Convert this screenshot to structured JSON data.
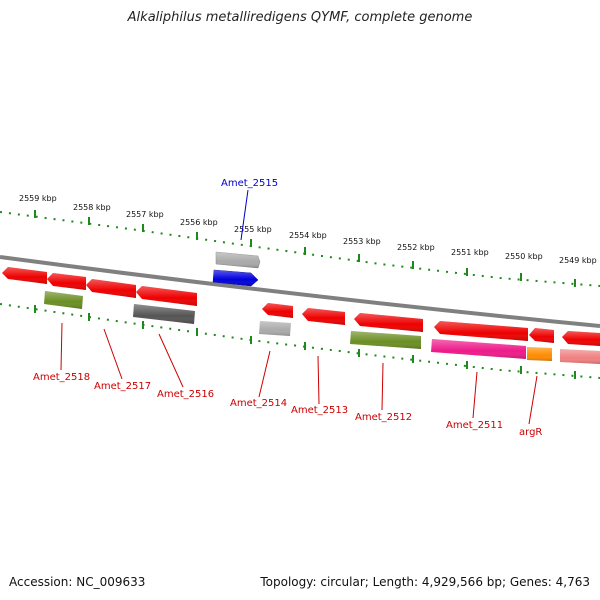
{
  "title": "Alkaliphilus metalliredigens QYMF, complete genome",
  "accession": "Accession: NC_009633",
  "topology": "Topology: circular; Length: 4,929,566 bp; Genes: 4,763",
  "colors": {
    "tick": "#1e8a1e",
    "backbone": "#808080",
    "gene_label": "#cc0000",
    "highlight_label": "#0000cc"
  },
  "kbp_labels": [
    "2559 kbp",
    "2558 kbp",
    "2557 kbp",
    "2556 kbp",
    "2555 kbp",
    "2554 kbp",
    "2553 kbp",
    "2552 kbp",
    "2551 kbp",
    "2550 kbp",
    "2549 kbp"
  ],
  "gene_labels": [
    "Amet_2515",
    "Amet_2518",
    "Amet_2517",
    "Amet_2516",
    "Amet_2514",
    "Amet_2513",
    "Amet_2512",
    "Amet_2511",
    "argR"
  ],
  "features": [
    {
      "name": "Amet_2515 gene",
      "color": "#aaaaaa",
      "strand": "+"
    },
    {
      "name": "Amet_2515 CDS",
      "color": "#0000dd",
      "strand": "+"
    },
    {
      "name": "Amet_2518 gene",
      "color": "#ee0000",
      "strand": "-"
    },
    {
      "name": "Amet_2518 CDS",
      "color": "#6b8e23",
      "strand": "-"
    },
    {
      "name": "Amet_2517 gene",
      "color": "#ee0000",
      "strand": "-"
    },
    {
      "name": "Amet_2516 gene",
      "color": "#ee0000",
      "strand": "-"
    },
    {
      "name": "Amet_2516 CDS",
      "color": "#555555",
      "strand": "-"
    },
    {
      "name": "Amet_2514 gene",
      "color": "#ee0000",
      "strand": "-"
    },
    {
      "name": "Amet_2514 CDS",
      "color": "#aaaaaa",
      "strand": "-"
    },
    {
      "name": "Amet_2513 gene",
      "color": "#ee0000",
      "strand": "-"
    },
    {
      "name": "Amet_2512 gene",
      "color": "#ee0000",
      "strand": "-"
    },
    {
      "name": "Amet_2512 CDS",
      "color": "#6b8e23",
      "strand": "-"
    },
    {
      "name": "Amet_2511 gene",
      "color": "#ee0000",
      "strand": "-"
    },
    {
      "name": "Amet_2511 CDS",
      "color": "#ee1a8a",
      "strand": "-"
    },
    {
      "name": "argR gene",
      "color": "#ee0000",
      "strand": "-"
    },
    {
      "name": "argR CDS",
      "color": "#ff8c00",
      "strand": "-"
    },
    {
      "name": "next gene",
      "color": "#ee0000",
      "strand": "-"
    },
    {
      "name": "next CDS",
      "color": "#f08080",
      "strand": "-"
    }
  ]
}
